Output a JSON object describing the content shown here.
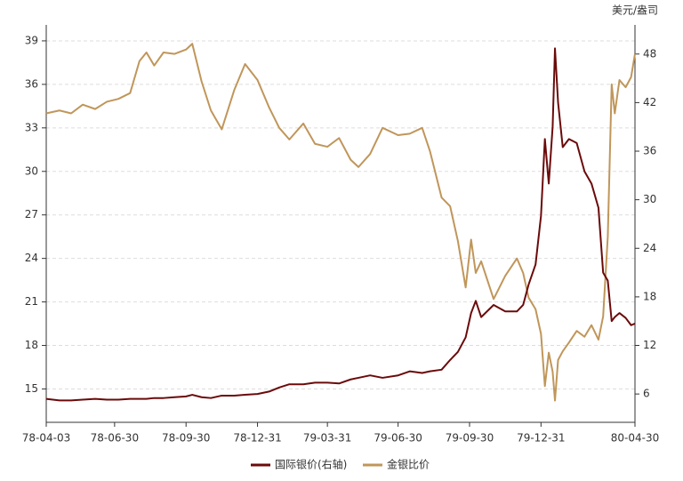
{
  "chart_data": {
    "type": "line",
    "y2label": "美元/盎司",
    "x": [
      "78-04-03",
      "78-04-20",
      "78-05-05",
      "78-05-20",
      "78-06-05",
      "78-06-20",
      "78-07-05",
      "78-07-20",
      "78-08-01",
      "78-08-10",
      "78-08-20",
      "78-09-01",
      "78-09-15",
      "78-09-30",
      "78-10-08",
      "78-10-20",
      "78-11-01",
      "78-11-15",
      "78-12-01",
      "78-12-15",
      "78-12-31",
      "79-01-15",
      "79-01-28",
      "79-02-10",
      "79-02-28",
      "79-03-15",
      "79-03-31",
      "79-04-15",
      "79-04-30",
      "79-05-10",
      "79-05-25",
      "79-06-10",
      "79-06-30",
      "79-07-15",
      "79-07-31",
      "79-08-10",
      "79-08-25",
      "79-09-05",
      "79-09-15",
      "79-09-25",
      "79-10-02",
      "79-10-08",
      "79-10-15",
      "79-10-31",
      "79-11-15",
      "79-11-30",
      "79-12-08",
      "79-12-15",
      "79-12-24",
      "79-12-31",
      "80-01-05",
      "80-01-10",
      "80-01-15",
      "80-01-18",
      "80-01-22",
      "80-01-28",
      "80-02-05",
      "80-02-15",
      "80-02-25",
      "80-03-05",
      "80-03-14",
      "80-03-20",
      "80-03-26",
      "80-03-31",
      "80-04-04",
      "80-04-10",
      "80-04-18",
      "80-04-25",
      "80-04-30"
    ],
    "series": [
      {
        "name": "国际银价(右轴)",
        "color": "#6b0a0a",
        "axis": "y2",
        "values": [
          5.4,
          5.2,
          5.2,
          5.3,
          5.4,
          5.3,
          5.3,
          5.4,
          5.4,
          5.4,
          5.5,
          5.5,
          5.6,
          5.7,
          5.9,
          5.6,
          5.5,
          5.8,
          5.8,
          5.9,
          6.0,
          6.3,
          6.8,
          7.2,
          7.2,
          7.4,
          7.4,
          7.3,
          7.8,
          8.0,
          8.3,
          8.0,
          8.3,
          8.8,
          8.6,
          8.8,
          9.0,
          10.2,
          11.2,
          13.0,
          16.0,
          17.5,
          15.5,
          17.0,
          16.2,
          16.2,
          17.0,
          19.5,
          22.0,
          28.0,
          37.5,
          32.0,
          39.0,
          48.7,
          42.0,
          36.5,
          37.5,
          37.0,
          33.5,
          32.0,
          29.0,
          21.0,
          20.0,
          15.0,
          15.5,
          16.0,
          15.4,
          14.5,
          14.7
        ]
      },
      {
        "name": "金银比价",
        "color": "#c0965a",
        "values": [
          34.0,
          34.2,
          34.0,
          34.6,
          34.3,
          34.8,
          35.0,
          35.4,
          37.6,
          38.2,
          37.3,
          38.2,
          38.1,
          38.4,
          38.8,
          36.2,
          34.2,
          32.9,
          35.6,
          37.4,
          36.3,
          34.4,
          33.0,
          32.2,
          33.3,
          31.9,
          31.7,
          32.3,
          30.8,
          30.3,
          31.2,
          33.0,
          32.5,
          32.6,
          33.0,
          31.4,
          28.2,
          27.6,
          25.2,
          22.0,
          25.3,
          23.0,
          23.8,
          21.2,
          22.8,
          24.0,
          23.0,
          21.3,
          20.5,
          18.8,
          15.2,
          17.5,
          16.2,
          14.2,
          17.0,
          17.6,
          18.2,
          19.0,
          18.6,
          19.4,
          18.4,
          20.0,
          25.5,
          36.0,
          34.0,
          36.3,
          35.8,
          36.5,
          38.1
        ]
      }
    ],
    "xlim": [
      "78-04-03",
      "80-04-30"
    ],
    "xticks": [
      "78-04-03",
      "78-06-30",
      "78-09-30",
      "78-12-31",
      "79-03-31",
      "79-06-30",
      "79-09-30",
      "79-12-31",
      "80-04-30"
    ],
    "ylim": [
      12.7,
      40.1
    ],
    "yticks": [
      15,
      18,
      21,
      24,
      27,
      30,
      33,
      36,
      39
    ],
    "y2lim": [
      2.5,
      51.6
    ],
    "y2ticks": [
      6,
      12,
      18,
      24,
      30,
      36,
      42,
      48
    ],
    "grid": true,
    "legend": "bottom"
  }
}
